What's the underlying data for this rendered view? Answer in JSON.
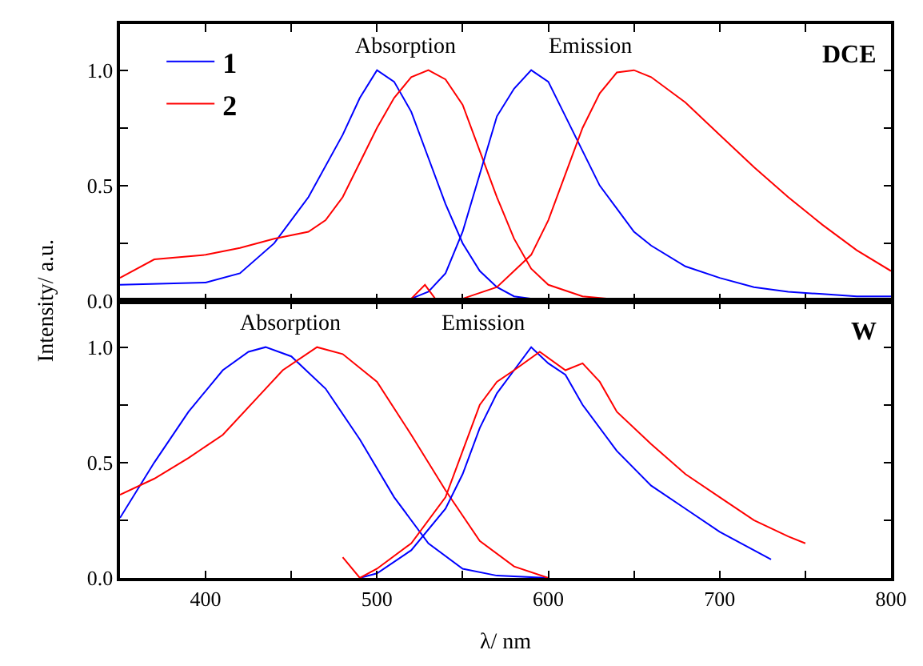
{
  "chart_data": [
    {
      "type": "line",
      "ylabel": "Intensity/ a.u.",
      "annotations": [
        "Absorption",
        "Emission",
        "DCE"
      ],
      "xlim": [
        350,
        800
      ],
      "ylim": [
        0,
        1.2
      ],
      "xticks": [
        400,
        {
          "value": 450,
          "label": null
        },
        500,
        {
          "value": 550,
          "label": null
        },
        600,
        {
          "value": 650,
          "label": null
        },
        700,
        {
          "value": 750,
          "label": null
        },
        800
      ],
      "yticks": [
        {
          "value": 0,
          "label": "0.0"
        },
        {
          "value": 0.25,
          "label": null
        },
        {
          "value": 0.5,
          "label": "0.5"
        },
        {
          "value": 0.75,
          "label": null
        },
        {
          "value": 1,
          "label": "1.0"
        }
      ],
      "tick_labels": "y",
      "legend": "top left",
      "marker": "none",
      "line_style": "solid",
      "series": [
        {
          "name": "1",
          "color": "#0000ff",
          "x": [
            350,
            400,
            420,
            440,
            460,
            480,
            490,
            500,
            510,
            520,
            530,
            540,
            550,
            560,
            570,
            580,
            600
          ],
          "values": [
            0.07,
            0.08,
            0.12,
            0.25,
            0.45,
            0.72,
            0.88,
            1.0,
            0.95,
            0.82,
            0.62,
            0.42,
            0.25,
            0.13,
            0.06,
            0.02,
            0.0
          ]
        },
        {
          "name": "2",
          "color": "#ff0000",
          "x": [
            350,
            370,
            400,
            420,
            440,
            460,
            470,
            480,
            490,
            500,
            510,
            520,
            530,
            540,
            550,
            560,
            570,
            580,
            590,
            600,
            620,
            650
          ],
          "values": [
            0.1,
            0.18,
            0.2,
            0.23,
            0.27,
            0.3,
            0.35,
            0.45,
            0.6,
            0.75,
            0.88,
            0.97,
            1.0,
            0.96,
            0.85,
            0.65,
            0.45,
            0.27,
            0.14,
            0.07,
            0.02,
            0.0
          ]
        },
        {
          "color": "#0000ff",
          "x": [
            500,
            520,
            530,
            540,
            550,
            560,
            570,
            580,
            590,
            600,
            610,
            620,
            630,
            640,
            650,
            660,
            680,
            700,
            720,
            740,
            760,
            780,
            800
          ],
          "values": [
            0,
            0.01,
            0.04,
            0.12,
            0.3,
            0.55,
            0.8,
            0.92,
            1.0,
            0.95,
            0.8,
            0.65,
            0.5,
            0.4,
            0.3,
            0.24,
            0.15,
            0.1,
            0.06,
            0.04,
            0.03,
            0.02,
            0.02
          ]
        },
        {
          "color": "#ff0000",
          "x": [
            500,
            520,
            528,
            535,
            550,
            570,
            590,
            600,
            610,
            620,
            630,
            640,
            650,
            660,
            680,
            700,
            720,
            740,
            760,
            780,
            800
          ],
          "values": [
            0,
            0.01,
            0.07,
            0,
            0.01,
            0.06,
            0.2,
            0.35,
            0.55,
            0.75,
            0.9,
            0.99,
            1.0,
            0.97,
            0.86,
            0.72,
            0.58,
            0.45,
            0.33,
            0.22,
            0.13
          ]
        }
      ]
    },
    {
      "type": "line",
      "xlabel": "λ/ nm",
      "annotations": [
        "Absorption",
        "Emission",
        "W"
      ],
      "xlim": [
        350,
        800
      ],
      "ylim": [
        0,
        1.2
      ],
      "xticks": [
        400,
        {
          "value": 450,
          "label": null
        },
        500,
        {
          "value": 550,
          "label": null
        },
        600,
        {
          "value": 650,
          "label": null
        },
        700,
        {
          "value": 750,
          "label": null
        },
        800
      ],
      "yticks": [
        {
          "value": 0,
          "label": "0.0"
        },
        {
          "value": 0.25,
          "label": null
        },
        {
          "value": 0.5,
          "label": "0.5"
        },
        {
          "value": 0.75,
          "label": null
        },
        {
          "value": 1,
          "label": "1.0"
        }
      ],
      "legend": false,
      "marker": "none",
      "line_style": "solid",
      "series": [
        {
          "color": "#0000ff",
          "x": [
            350,
            370,
            390,
            410,
            425,
            435,
            450,
            470,
            490,
            510,
            530,
            550,
            570,
            600
          ],
          "values": [
            0.26,
            0.5,
            0.72,
            0.9,
            0.98,
            1.0,
            0.96,
            0.82,
            0.6,
            0.35,
            0.15,
            0.04,
            0.01,
            0.0
          ]
        },
        {
          "color": "#ff0000",
          "x": [
            350,
            370,
            390,
            410,
            430,
            445,
            465,
            480,
            500,
            520,
            540,
            560,
            580,
            600
          ],
          "values": [
            0.36,
            0.43,
            0.52,
            0.62,
            0.78,
            0.9,
            1.0,
            0.97,
            0.85,
            0.62,
            0.38,
            0.16,
            0.05,
            0.0
          ]
        },
        {
          "color": "#0000ff",
          "x": [
            490,
            500,
            520,
            540,
            550,
            560,
            570,
            580,
            590,
            600,
            610,
            620,
            640,
            660,
            680,
            700,
            720,
            730
          ],
          "values": [
            0,
            0.02,
            0.12,
            0.3,
            0.45,
            0.65,
            0.8,
            0.9,
            1.0,
            0.93,
            0.88,
            0.75,
            0.55,
            0.4,
            0.3,
            0.2,
            0.12,
            0.08
          ]
        },
        {
          "color": "#ff0000",
          "x": [
            480,
            490,
            500,
            520,
            540,
            550,
            560,
            570,
            580,
            595,
            610,
            620,
            630,
            640,
            660,
            680,
            700,
            720,
            740,
            750
          ],
          "values": [
            0.09,
            0.0,
            0.04,
            0.15,
            0.35,
            0.55,
            0.75,
            0.85,
            0.9,
            0.98,
            0.9,
            0.93,
            0.85,
            0.72,
            0.58,
            0.45,
            0.35,
            0.25,
            0.18,
            0.15
          ]
        }
      ]
    }
  ]
}
